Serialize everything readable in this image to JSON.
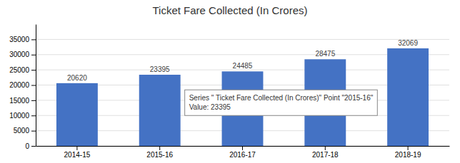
{
  "chart_data": {
    "type": "bar",
    "title": "Ticket Fare Collected (In Crores)",
    "categories": [
      "2014-15",
      "2015-16",
      "2016-17",
      "2017-18",
      "2018-19"
    ],
    "values": [
      20620,
      23395,
      24485,
      28475,
      32069
    ],
    "color": "#4472C4",
    "ylim": [
      0,
      40000
    ],
    "yticks": [
      0,
      5000,
      10000,
      15000,
      20000,
      25000,
      30000,
      35000
    ],
    "grid": true,
    "data_labels": true,
    "annotations": [
      "Series \" Ticket Fare Collected (In Crores)\" Point \"2015-16\"",
      "Value: 23395"
    ]
  }
}
